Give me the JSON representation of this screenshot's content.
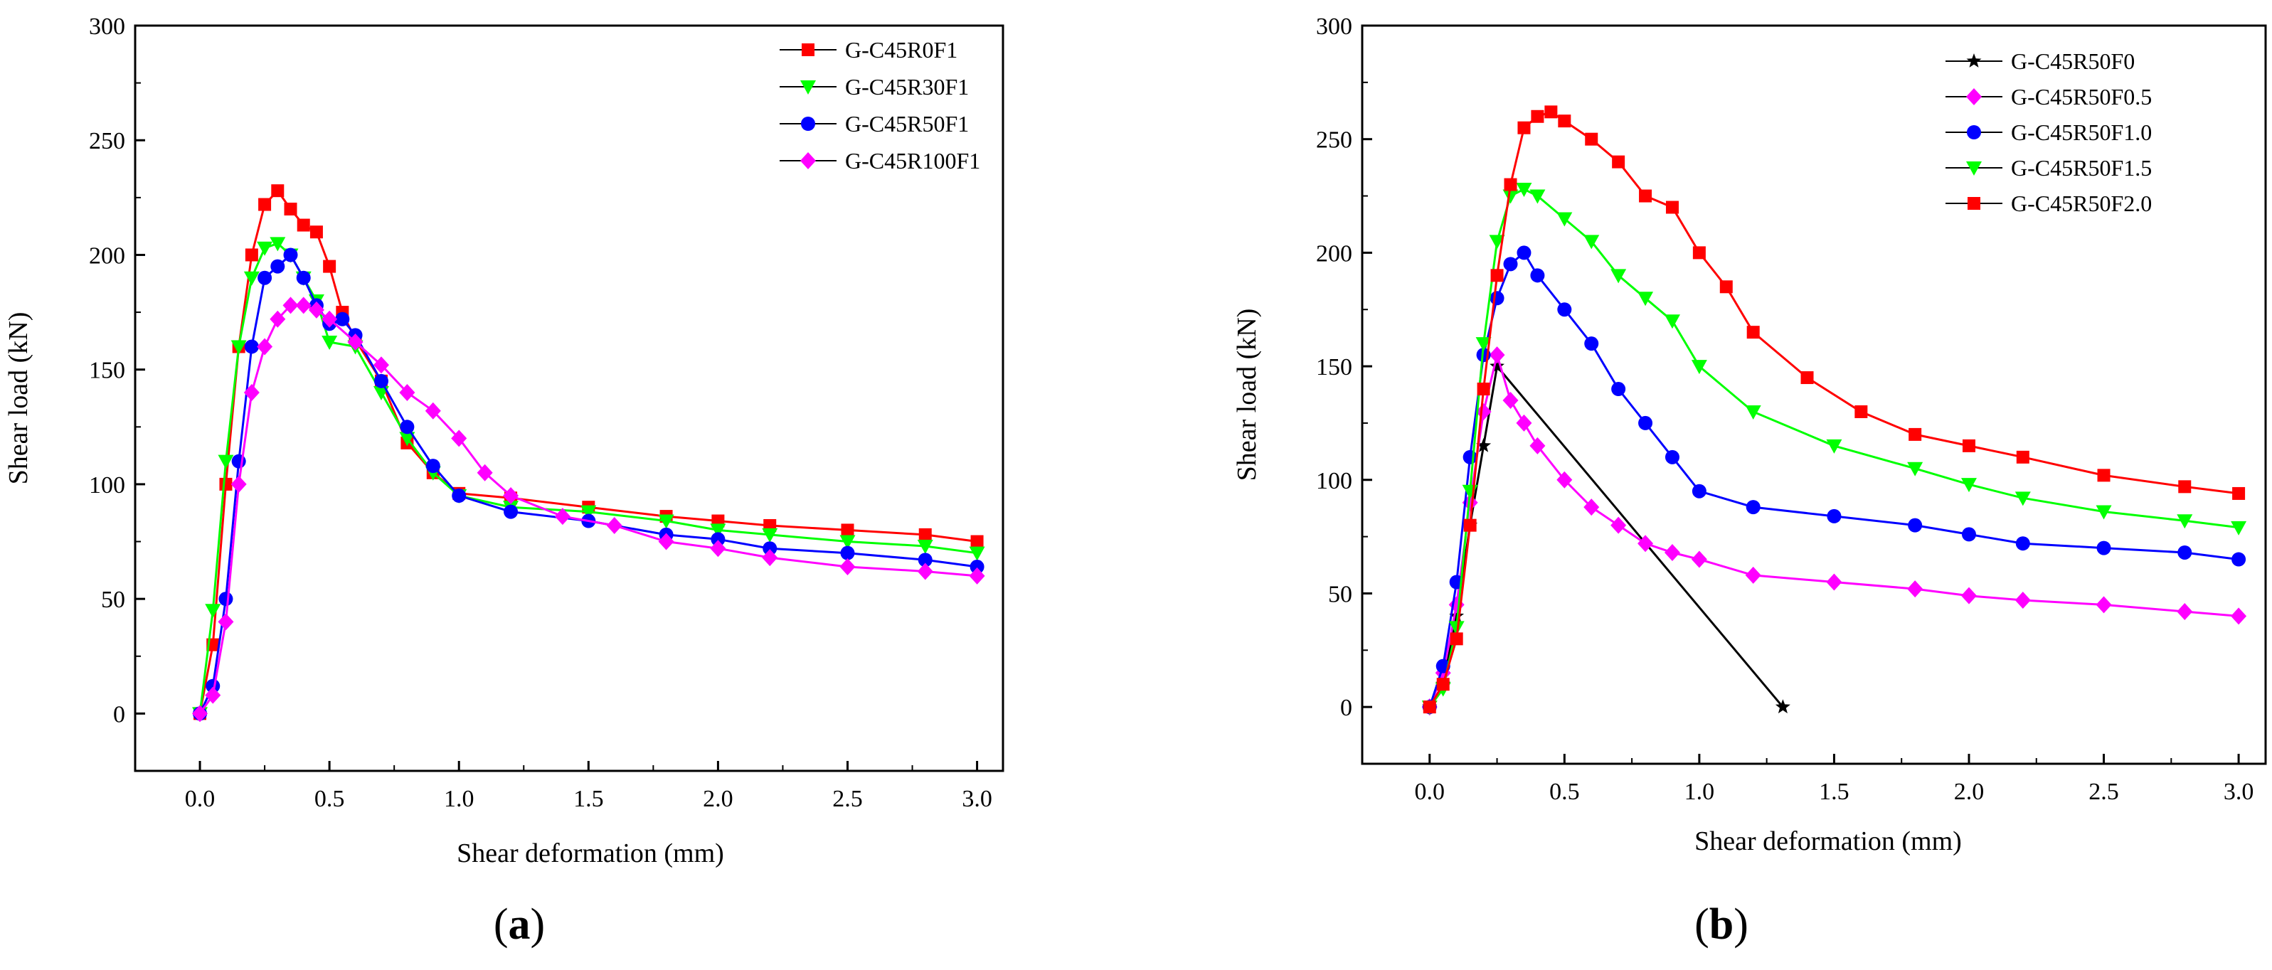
{
  "chart_data": [
    {
      "panel_label": "(a)",
      "panel_letter": "a",
      "type": "line",
      "xlabel": "Shear deformation (mm)",
      "ylabel": "Shear load (kN)",
      "xlim": [
        -0.25,
        3.1
      ],
      "ylim": [
        -25,
        300
      ],
      "xticks": [
        "0.0",
        "0.5",
        "1.0",
        "1.5",
        "2.0",
        "2.5",
        "3.0"
      ],
      "yticks": [
        "0",
        "50",
        "100",
        "150",
        "200",
        "250",
        "300"
      ],
      "legend_position": "top-right",
      "series": [
        {
          "name": "G-C45R0F1",
          "color": "#ff0000",
          "marker": "square",
          "x": [
            0,
            0.05,
            0.1,
            0.15,
            0.2,
            0.25,
            0.3,
            0.35,
            0.4,
            0.45,
            0.5,
            0.55,
            0.6,
            0.7,
            0.8,
            0.9,
            1.0,
            1.2,
            1.5,
            1.8,
            2.0,
            2.2,
            2.5,
            2.8,
            3.0
          ],
          "y": [
            0,
            30,
            100,
            160,
            200,
            222,
            228,
            220,
            213,
            210,
            195,
            175,
            163,
            145,
            118,
            105,
            96,
            94,
            90,
            86,
            84,
            82,
            80,
            78,
            75
          ]
        },
        {
          "name": "G-C45R30F1",
          "color": "#00ff00",
          "marker": "triangle-down",
          "x": [
            0,
            0.05,
            0.1,
            0.15,
            0.2,
            0.25,
            0.3,
            0.35,
            0.4,
            0.45,
            0.5,
            0.6,
            0.7,
            0.8,
            0.9,
            1.0,
            1.2,
            1.5,
            1.8,
            2.0,
            2.2,
            2.5,
            2.8,
            3.0
          ],
          "y": [
            0,
            45,
            110,
            160,
            190,
            203,
            205,
            200,
            190,
            180,
            162,
            160,
            140,
            120,
            105,
            95,
            90,
            88,
            84,
            80,
            78,
            75,
            73,
            70
          ]
        },
        {
          "name": "G-C45R50F1",
          "color": "#0000ff",
          "marker": "circle",
          "x": [
            0,
            0.05,
            0.1,
            0.15,
            0.2,
            0.25,
            0.3,
            0.35,
            0.4,
            0.45,
            0.5,
            0.55,
            0.6,
            0.7,
            0.8,
            0.9,
            1.0,
            1.2,
            1.5,
            1.8,
            2.0,
            2.2,
            2.5,
            2.8,
            3.0
          ],
          "y": [
            0,
            12,
            50,
            110,
            160,
            190,
            195,
            200,
            190,
            178,
            170,
            172,
            165,
            145,
            125,
            108,
            95,
            88,
            84,
            78,
            76,
            72,
            70,
            67,
            64
          ]
        },
        {
          "name": "G-C45R100F1",
          "color": "#ff00ff",
          "marker": "diamond",
          "x": [
            0,
            0.05,
            0.1,
            0.15,
            0.2,
            0.25,
            0.3,
            0.35,
            0.4,
            0.45,
            0.5,
            0.6,
            0.7,
            0.8,
            0.9,
            1.0,
            1.1,
            1.2,
            1.4,
            1.6,
            1.8,
            2.0,
            2.2,
            2.5,
            2.8,
            3.0
          ],
          "y": [
            0,
            8,
            40,
            100,
            140,
            160,
            172,
            178,
            178,
            176,
            172,
            162,
            152,
            140,
            132,
            120,
            105,
            95,
            86,
            82,
            75,
            72,
            68,
            64,
            62,
            60
          ]
        }
      ]
    },
    {
      "panel_label": "(b)",
      "panel_letter": "b",
      "type": "line",
      "xlabel": "Shear deformation (mm)",
      "ylabel": "Shear load (kN)",
      "xlim": [
        -0.25,
        3.1
      ],
      "ylim": [
        -25,
        300
      ],
      "xticks": [
        "0.0",
        "0.5",
        "1.0",
        "1.5",
        "2.0",
        "2.5",
        "3.0"
      ],
      "yticks": [
        "0",
        "50",
        "100",
        "150",
        "200",
        "250",
        "300"
      ],
      "legend_position": "top-right",
      "series": [
        {
          "name": "G-C45R50F0",
          "color": "#000000",
          "marker": "star",
          "x": [
            0,
            0.05,
            0.1,
            0.15,
            0.2,
            0.25,
            1.31
          ],
          "y": [
            0,
            10,
            40,
            80,
            115,
            150,
            0
          ]
        },
        {
          "name": "G-C45R50F0.5",
          "color": "#ff00ff",
          "marker": "diamond",
          "x": [
            0,
            0.05,
            0.1,
            0.15,
            0.2,
            0.25,
            0.3,
            0.35,
            0.4,
            0.5,
            0.6,
            0.7,
            0.8,
            0.9,
            1.0,
            1.2,
            1.5,
            1.8,
            2.0,
            2.2,
            2.5,
            2.8,
            3.0
          ],
          "y": [
            0,
            15,
            45,
            90,
            130,
            155,
            135,
            125,
            115,
            100,
            88,
            80,
            72,
            68,
            65,
            58,
            55,
            52,
            49,
            47,
            45,
            42,
            40
          ]
        },
        {
          "name": "G-C45R50F1.0",
          "color": "#0000ff",
          "marker": "circle",
          "x": [
            0,
            0.05,
            0.1,
            0.15,
            0.2,
            0.25,
            0.3,
            0.35,
            0.4,
            0.5,
            0.6,
            0.7,
            0.8,
            0.9,
            1.0,
            1.2,
            1.5,
            1.8,
            2.0,
            2.2,
            2.5,
            2.8,
            3.0
          ],
          "y": [
            0,
            18,
            55,
            110,
            155,
            180,
            195,
            200,
            190,
            175,
            160,
            140,
            125,
            110,
            95,
            88,
            84,
            80,
            76,
            72,
            70,
            68,
            65
          ]
        },
        {
          "name": "G-C45R50F1.5",
          "color": "#00ff00",
          "marker": "triangle-down",
          "x": [
            0,
            0.05,
            0.1,
            0.15,
            0.2,
            0.25,
            0.3,
            0.35,
            0.4,
            0.5,
            0.6,
            0.7,
            0.8,
            0.9,
            1.0,
            1.2,
            1.5,
            1.8,
            2.0,
            2.2,
            2.5,
            2.8,
            3.0
          ],
          "y": [
            0,
            8,
            35,
            95,
            160,
            205,
            225,
            228,
            225,
            215,
            205,
            190,
            180,
            170,
            150,
            130,
            115,
            105,
            98,
            92,
            86,
            82,
            79
          ]
        },
        {
          "name": "G-C45R50F2.0",
          "color": "#ff0000",
          "marker": "square",
          "x": [
            0,
            0.05,
            0.1,
            0.15,
            0.2,
            0.25,
            0.3,
            0.35,
            0.4,
            0.45,
            0.5,
            0.6,
            0.7,
            0.8,
            0.9,
            1.0,
            1.1,
            1.2,
            1.4,
            1.6,
            1.8,
            2.0,
            2.2,
            2.5,
            2.8,
            3.0
          ],
          "y": [
            0,
            10,
            30,
            80,
            140,
            190,
            230,
            255,
            260,
            262,
            258,
            250,
            240,
            225,
            220,
            200,
            185,
            165,
            145,
            130,
            120,
            115,
            110,
            102,
            97,
            94
          ]
        }
      ]
    }
  ]
}
